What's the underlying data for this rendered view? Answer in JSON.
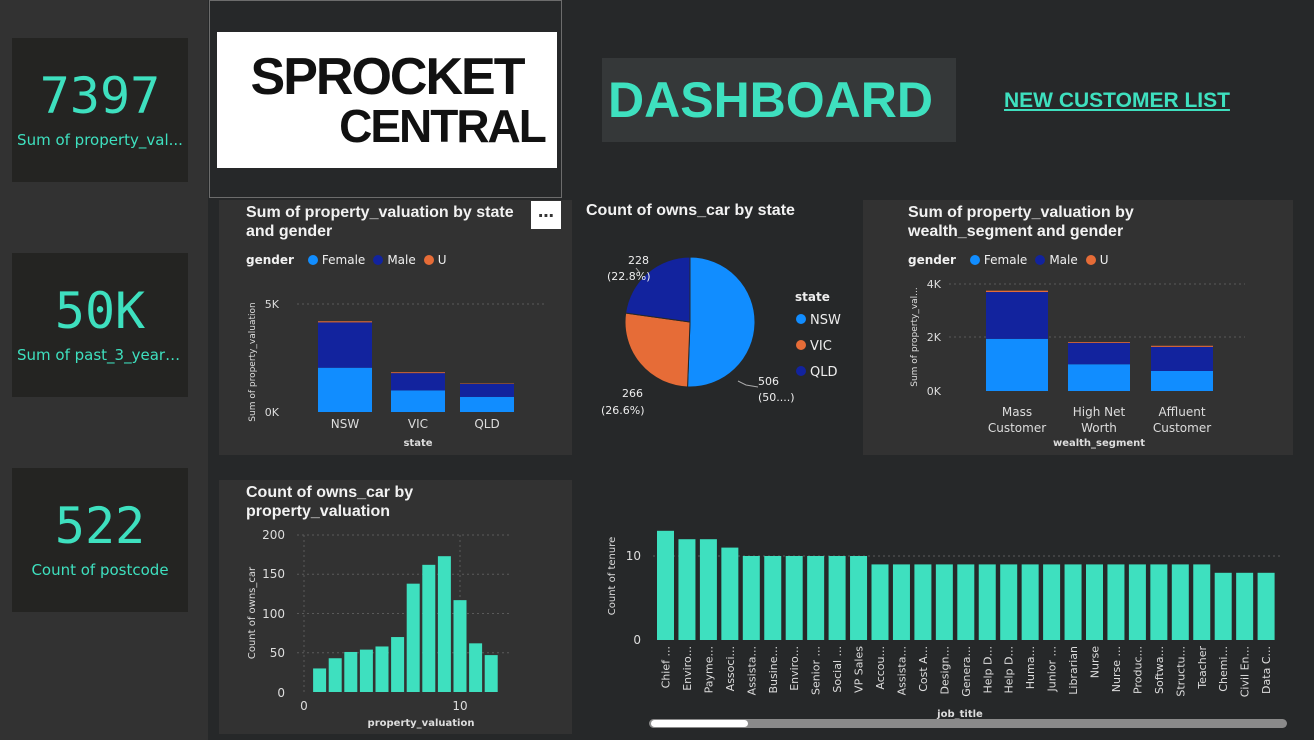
{
  "kpis": [
    {
      "value": "7397",
      "label": "Sum of property_val..."
    },
    {
      "value": "50K",
      "label": "Sum of past_3_years..."
    },
    {
      "value": "522",
      "label": "Count of postcode"
    }
  ],
  "logo": {
    "line1": "SPROCKET",
    "line2": "CENTRAL"
  },
  "header": {
    "title": "DASHBOARD",
    "nav_link": "NEW CUSTOMER LIST"
  },
  "more_options": "⋯",
  "colors": {
    "female": "#118dff",
    "male": "#12239e",
    "u": "#e66c37",
    "teal": "#3ee0bf"
  },
  "charts": {
    "state_gender": {
      "title_line1": "Sum of property_valuation by state",
      "title_line2": "and gender",
      "legend_title": "gender",
      "legend": [
        "Female",
        "Male",
        "U"
      ],
      "xlabel": "state",
      "ylabel": "Sum of property_valuation",
      "ticks": [
        "5K",
        "0K"
      ]
    },
    "pie": {
      "title": "Count of owns_car by state",
      "legend_title": "state",
      "legend": [
        "NSW",
        "VIC",
        "QLD"
      ],
      "labels": [
        {
          "count": "506",
          "pct": "(50....)"
        },
        {
          "count": "266",
          "pct": "(26.6%)"
        },
        {
          "count": "228",
          "pct": "(22.8%)"
        }
      ]
    },
    "wealth_gender": {
      "title_line1": "Sum of property_valuation by",
      "title_line2": "wealth_segment and gender",
      "legend_title": "gender",
      "legend": [
        "Female",
        "Male",
        "U"
      ],
      "xlabel": "wealth_segment",
      "ylabel": "Sum of property_val...",
      "ticks": [
        "4K",
        "2K",
        "0K"
      ],
      "cat_lines": [
        [
          "Mass",
          "Customer"
        ],
        [
          "High Net",
          "Worth"
        ],
        [
          "Affluent",
          "Customer"
        ]
      ]
    },
    "histogram": {
      "title_line1": "Count of owns_car by",
      "title_line2": "property_valuation",
      "xlabel": "property_valuation",
      "ylabel": "Count of owns_car",
      "yticks": [
        "200",
        "150",
        "100",
        "50",
        "0"
      ],
      "xticks": [
        "0",
        "10"
      ]
    },
    "job_title": {
      "xlabel": "job_title",
      "ylabel": "Count of tenure",
      "yticks": [
        "10",
        "0"
      ]
    }
  },
  "chart_data": [
    {
      "type": "bar",
      "stacked": true,
      "title": "Sum of property_valuation by state and gender",
      "xlabel": "state",
      "ylabel": "Sum of property_valuation",
      "categories": [
        "NSW",
        "VIC",
        "QLD"
      ],
      "series": [
        {
          "name": "Female",
          "values": [
            2050,
            1000,
            700
          ]
        },
        {
          "name": "Male",
          "values": [
            2100,
            800,
            600
          ]
        },
        {
          "name": "U",
          "values": [
            50,
            40,
            20
          ]
        }
      ],
      "ylim": [
        0,
        5000
      ],
      "legend": "top-left",
      "grid": true
    },
    {
      "type": "pie",
      "title": "Count of owns_car by state",
      "categories": [
        "NSW",
        "VIC",
        "QLD"
      ],
      "values": [
        506,
        266,
        228
      ],
      "legend": "right"
    },
    {
      "type": "bar",
      "stacked": true,
      "title": "Sum of property_valuation by wealth_segment and gender",
      "xlabel": "wealth_segment",
      "ylabel": "Sum of property_val...",
      "categories": [
        "Mass Customer",
        "High Net Worth",
        "Affluent Customer"
      ],
      "series": [
        {
          "name": "Female",
          "values": [
            1950,
            1000,
            750
          ]
        },
        {
          "name": "Male",
          "values": [
            1750,
            800,
            900
          ]
        },
        {
          "name": "U",
          "values": [
            50,
            30,
            40
          ]
        }
      ],
      "ylim": [
        0,
        4000
      ],
      "legend": "top-left",
      "grid": true
    },
    {
      "type": "bar",
      "title": "Count of owns_car by property_valuation",
      "xlabel": "property_valuation",
      "ylabel": "Count of owns_car",
      "x": [
        1,
        2,
        3,
        4,
        5,
        6,
        7,
        8,
        9,
        10,
        11,
        12
      ],
      "values": [
        30,
        43,
        51,
        54,
        58,
        70,
        138,
        162,
        173,
        117,
        62,
        47
      ],
      "ylim": [
        0,
        200
      ],
      "xlim": [
        0,
        13
      ],
      "grid": true
    },
    {
      "type": "bar",
      "xlabel": "job_title",
      "ylabel": "Count of tenure",
      "categories": [
        "Chief ...",
        "Enviro...",
        "Payme...",
        "Associ...",
        "Assista...",
        "Busine...",
        "Enviro...",
        "Senior ...",
        "Social ...",
        "VP Sales",
        "Accou...",
        "Assista...",
        "Cost A...",
        "Design...",
        "Genera...",
        "Help D...",
        "Help D...",
        "Huma...",
        "Junior ...",
        "Librarian",
        "Nurse",
        "Nurse ...",
        "Produc...",
        "Softwa...",
        "Structu...",
        "Teacher",
        "Chemi...",
        "Civil En...",
        "Data C..."
      ],
      "values": [
        13,
        12,
        12,
        11,
        10,
        10,
        10,
        10,
        10,
        10,
        9,
        9,
        9,
        9,
        9,
        9,
        9,
        9,
        9,
        9,
        9,
        9,
        9,
        9,
        9,
        9,
        8,
        8,
        8
      ],
      "ylim": [
        0,
        14
      ],
      "grid": true
    }
  ]
}
